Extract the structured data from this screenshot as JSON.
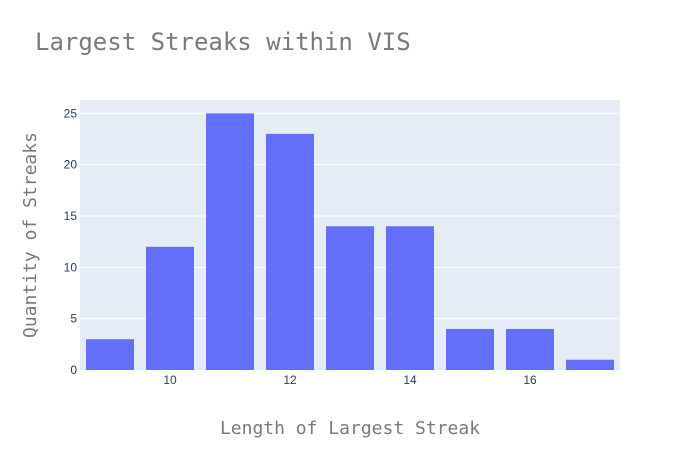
{
  "chart_data": {
    "type": "bar",
    "title": "Largest Streaks within VIS",
    "xlabel": "Length of Largest Streak",
    "ylabel": "Quantity of Streaks",
    "x": [
      9,
      10,
      11,
      12,
      13,
      14,
      15,
      16,
      17
    ],
    "values": [
      3,
      12,
      25,
      23,
      14,
      14,
      4,
      4,
      1
    ],
    "xlim": [
      8.5,
      17.5
    ],
    "ylim": [
      0,
      26.3
    ],
    "xticks": [
      10,
      12,
      14,
      16
    ],
    "yticks": [
      0,
      5,
      10,
      15,
      20,
      25
    ],
    "grid": true,
    "bar_color": "#636efa",
    "plot_bg": "#e5ecf6"
  }
}
